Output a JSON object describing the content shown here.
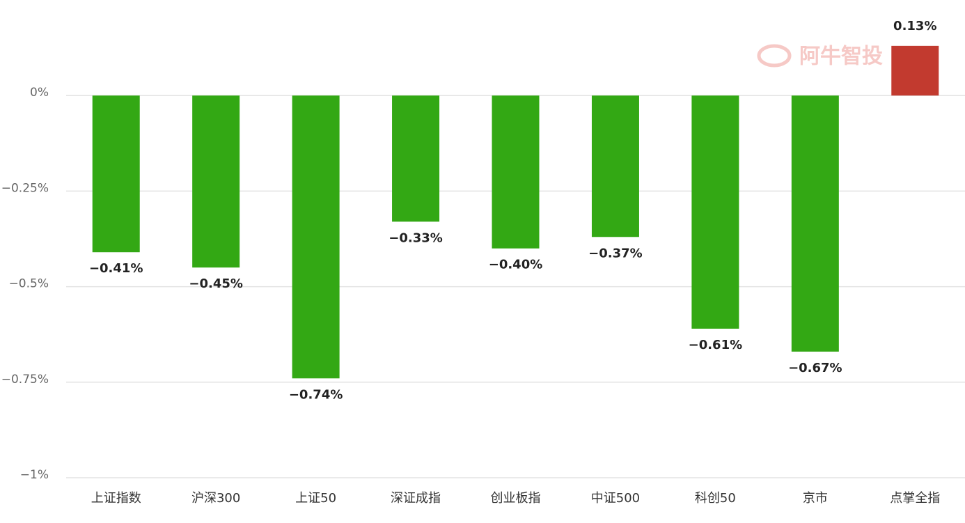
{
  "chart_data": {
    "type": "bar",
    "watermark": "阿牛智投",
    "categories": [
      "上证指数",
      "沪深300",
      "上证50",
      "深证成指",
      "创业板指",
      "中证500",
      "科创50",
      "京市",
      "点掌全指"
    ],
    "values": [
      -0.41,
      -0.45,
      -0.74,
      -0.33,
      -0.4,
      -0.37,
      -0.61,
      -0.67,
      0.13
    ],
    "value_labels": [
      "−0.41%",
      "−0.45%",
      "−0.74%",
      "−0.33%",
      "−0.40%",
      "−0.37%",
      "−0.61%",
      "−0.67%",
      "0.13%"
    ],
    "colors": [
      "#33a814",
      "#33a814",
      "#33a814",
      "#33a814",
      "#33a814",
      "#33a814",
      "#33a814",
      "#33a814",
      "#c23a2f"
    ],
    "ylim": [
      -1,
      0.25
    ],
    "yticks": [
      {
        "value": 0,
        "label": "0%"
      },
      {
        "value": -0.25,
        "label": "−0.25%"
      },
      {
        "value": -0.5,
        "label": "−0.5%"
      },
      {
        "value": -0.75,
        "label": "−0.75%"
      },
      {
        "value": -1,
        "label": "−1%"
      }
    ],
    "grid": true
  }
}
